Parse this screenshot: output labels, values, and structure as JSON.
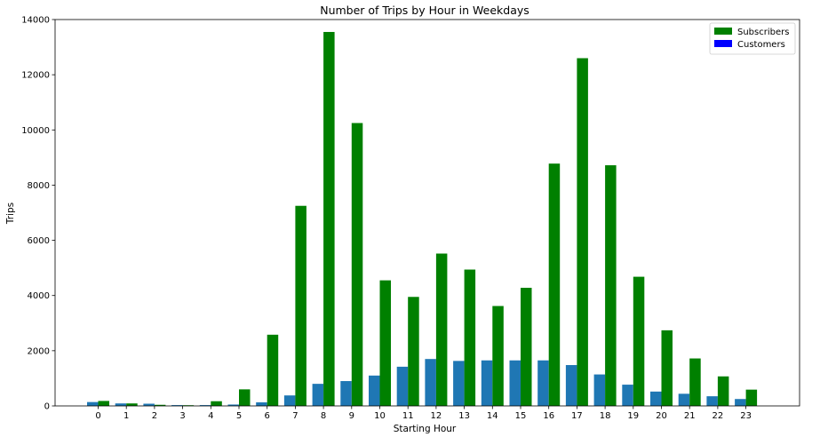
{
  "chart_data": {
    "type": "bar",
    "title": "Number of Trips by Hour in Weekdays",
    "xlabel": "Starting Hour",
    "ylabel": "Trips",
    "categories": [
      "0",
      "1",
      "2",
      "3",
      "4",
      "5",
      "6",
      "7",
      "8",
      "9",
      "10",
      "11",
      "12",
      "13",
      "14",
      "15",
      "16",
      "17",
      "18",
      "19",
      "20",
      "21",
      "22",
      "23"
    ],
    "ylim": [
      0,
      14000
    ],
    "yticks": [
      "0",
      "2000",
      "4000",
      "6000",
      "8000",
      "10000",
      "12000",
      "14000"
    ],
    "legend_position": "top-right",
    "grid": false,
    "series": [
      {
        "name": "Subscribers",
        "legend_color": "#008000",
        "color": "#008000",
        "values": [
          180,
          90,
          40,
          25,
          170,
          600,
          2580,
          7250,
          13550,
          10250,
          4550,
          3950,
          5520,
          4940,
          3620,
          4280,
          8780,
          12600,
          8720,
          4680,
          2740,
          1720,
          1070,
          590
        ]
      },
      {
        "name": "Customers",
        "legend_color": "#0000ff",
        "color": "#1f77b4",
        "values": [
          140,
          90,
          80,
          30,
          30,
          50,
          130,
          380,
          800,
          900,
          1100,
          1420,
          1700,
          1630,
          1650,
          1650,
          1650,
          1480,
          1140,
          770,
          520,
          440,
          350,
          250
        ]
      }
    ]
  }
}
